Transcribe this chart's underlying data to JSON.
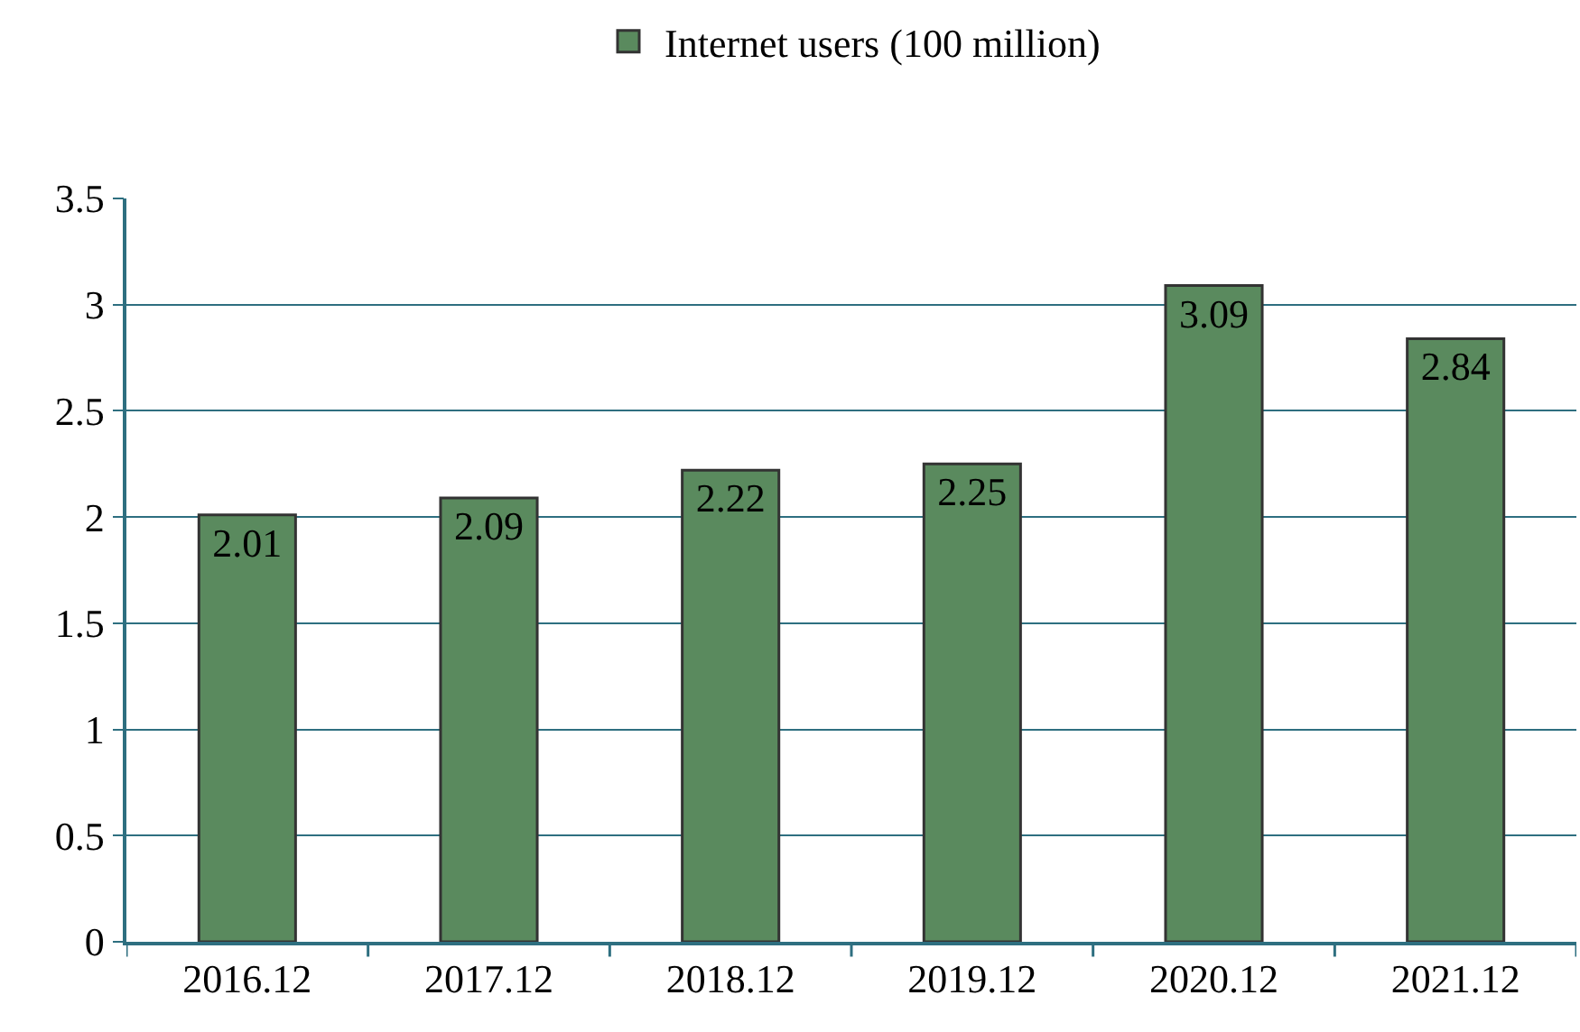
{
  "chart_data": {
    "type": "bar",
    "categories": [
      "2016.12",
      "2017.12",
      "2018.12",
      "2019.12",
      "2020.12",
      "2021.12"
    ],
    "series": [
      {
        "name": "Internet users (100 million)",
        "color": "#5a8a5e",
        "values": [
          2.01,
          2.09,
          2.22,
          2.25,
          3.09,
          2.84
        ]
      }
    ],
    "ylim": [
      0,
      3.5
    ],
    "yticks": [
      0,
      0.5,
      1,
      1.5,
      2,
      2.5,
      3,
      3.5
    ],
    "grid": "y",
    "legend": "top",
    "data_labels": true
  }
}
